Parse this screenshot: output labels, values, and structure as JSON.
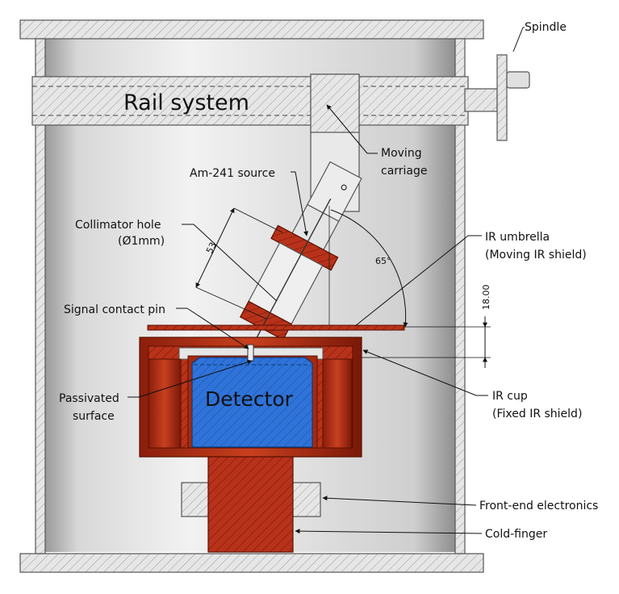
{
  "labels": {
    "spindle": "Spindle",
    "rail_system": "Rail system",
    "moving_carriage_1": "Moving",
    "moving_carriage_2": "carriage",
    "am_source": "Am-241 source",
    "collimator_1": "Collimator hole",
    "collimator_2": "(Ø1mm)",
    "ir_umbrella_1": "IR umbrella",
    "ir_umbrella_2": "(Moving IR shield)",
    "dim_53": "53",
    "angle_65": "65°",
    "dim_18": "18.00",
    "signal_pin": "Signal contact pin",
    "detector": "Detector",
    "passivated_1": "Passivated",
    "passivated_2": "surface",
    "ir_cup_1": "IR cup",
    "ir_cup_2": "(Fixed IR shield)",
    "front_end": "Front-end electronics",
    "cold_finger": "Cold-finger"
  },
  "colors": {
    "steel": "#c9c9c9",
    "hatch_frame": "#d8d8d8",
    "copper": "#b8321a",
    "detector_blue": "#2f73d9"
  }
}
